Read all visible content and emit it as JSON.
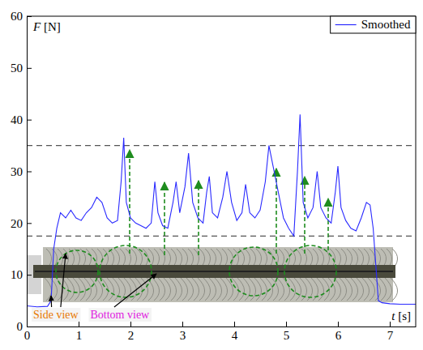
{
  "chart_data": {
    "type": "line",
    "x_label": "t [s]",
    "y_label": "F [N]",
    "x": [
      0,
      0.2,
      0.4,
      0.47,
      0.52,
      0.58,
      0.65,
      0.75,
      0.85,
      0.95,
      1.05,
      1.15,
      1.25,
      1.35,
      1.45,
      1.55,
      1.65,
      1.75,
      1.82,
      1.87,
      1.92,
      2.0,
      2.1,
      2.2,
      2.3,
      2.4,
      2.47,
      2.53,
      2.62,
      2.72,
      2.82,
      2.88,
      2.95,
      3.05,
      3.12,
      3.2,
      3.3,
      3.4,
      3.47,
      3.52,
      3.58,
      3.68,
      3.78,
      3.86,
      3.95,
      4.05,
      4.15,
      4.22,
      4.3,
      4.4,
      4.5,
      4.6,
      4.67,
      4.75,
      4.85,
      4.95,
      5.05,
      5.15,
      5.22,
      5.27,
      5.33,
      5.42,
      5.52,
      5.6,
      5.67,
      5.77,
      5.87,
      5.95,
      6.0,
      6.06,
      6.15,
      6.25,
      6.35,
      6.45,
      6.55,
      6.62,
      6.68,
      6.73,
      6.78,
      6.85,
      7.0,
      7.2,
      7.5
    ],
    "series": [
      {
        "name": "Smoothed",
        "color": "#2a2aff",
        "values": [
          4.0,
          3.8,
          3.9,
          5,
          15,
          19,
          22,
          21,
          22.5,
          21,
          20.5,
          22,
          23,
          25,
          24,
          21,
          20,
          20.5,
          28,
          36.5,
          24,
          21,
          20,
          19.5,
          19,
          20,
          28,
          22,
          19.5,
          19,
          24,
          28,
          22,
          27,
          33.5,
          24,
          21,
          20,
          26,
          29,
          22,
          21,
          25,
          30,
          24,
          20.5,
          22,
          27.5,
          22,
          21,
          22.5,
          28,
          35,
          31,
          26,
          21,
          19,
          17.5,
          30,
          41,
          24,
          21,
          23,
          30,
          23,
          21,
          20,
          26,
          31,
          23,
          20.5,
          19,
          18.5,
          21,
          24,
          23.5,
          19,
          12,
          5,
          4.6,
          4.4,
          4.3,
          4.3
        ]
      }
    ],
    "xlim": [
      0,
      7.5
    ],
    "xticks": [
      0,
      1,
      2,
      3,
      4,
      5,
      6,
      7
    ],
    "ylim": [
      0,
      60
    ],
    "yticks": [
      0,
      10,
      20,
      30,
      40,
      50,
      60
    ],
    "reference_lines": [
      35,
      17.5
    ],
    "annotations": [
      "Side view",
      "Bottom view"
    ],
    "legend": "upper right"
  }
}
